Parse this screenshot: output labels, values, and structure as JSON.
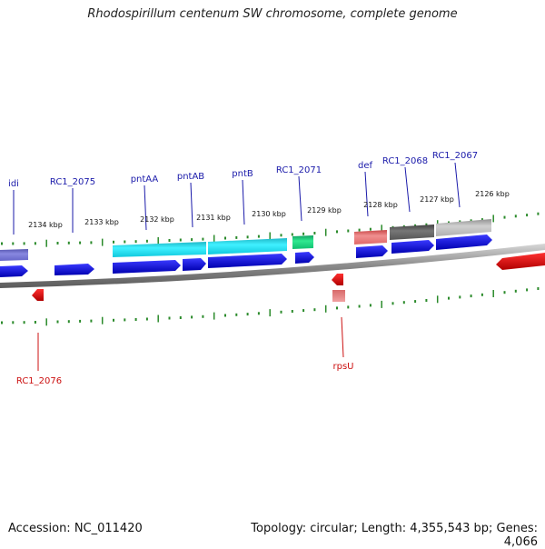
{
  "title": "Rhodospirillum centenum SW chromosome, complete genome",
  "footer": {
    "accession": "Accession: NC_011420",
    "summary": "Topology: circular; Length: 4,355,543 bp; Genes: 4,066"
  },
  "scale_labels": [
    "2134 kbp",
    "2133 kbp",
    "2132 kbp",
    "2131 kbp",
    "2130 kbp",
    "2129 kbp",
    "2128 kbp",
    "2127 kbp",
    "2126 kbp"
  ],
  "top_gene_labels": [
    "idi",
    "RC1_2075",
    "pntAA",
    "pntAB",
    "pntB",
    "RC1_2071",
    "def",
    "RC1_2068",
    "RC1_2067"
  ],
  "bottom_gene_labels": [
    "RC1_2076",
    "rpsU"
  ],
  "colors": {
    "forward_gene": "#0a0ad8",
    "reverse_gene": "#e00000",
    "label_forward": "#1a1aaa",
    "label_reverse": "#cc1111",
    "tick": "#2a8a2a",
    "backbone": "#808080"
  }
}
